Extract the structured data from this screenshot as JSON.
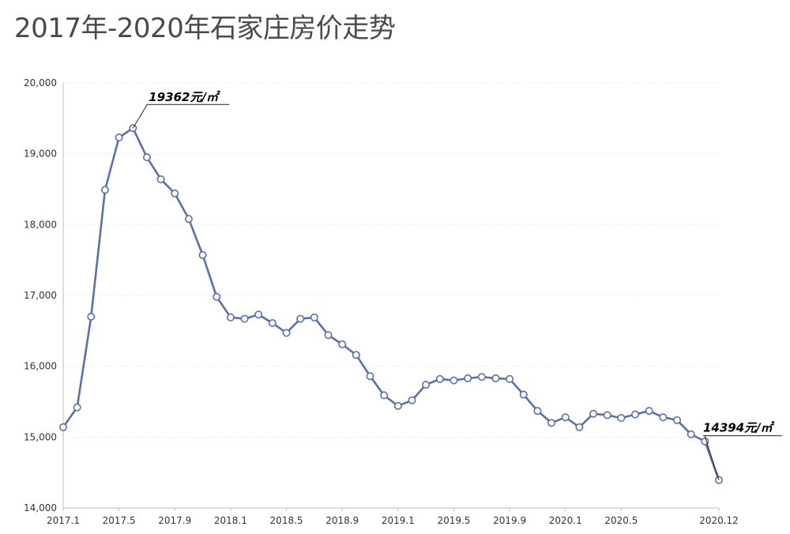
{
  "title": "2017年-2020年石家庄房价走势",
  "chart_data": {
    "type": "line",
    "title": "2017年-2020年石家庄房价走势",
    "xlabel": "",
    "ylabel": "",
    "ylim": [
      14000,
      20000
    ],
    "y_ticks": [
      14000,
      15000,
      16000,
      17000,
      18000,
      19000,
      20000
    ],
    "y_tick_labels": [
      "14,000",
      "15,000",
      "16,000",
      "17,000",
      "18,000",
      "19,000",
      "20,000"
    ],
    "x_tick_labels": [
      {
        "label": "2017.1",
        "index": 0
      },
      {
        "label": "2017.5",
        "index": 4
      },
      {
        "label": "2017.9",
        "index": 8
      },
      {
        "label": "2018.1",
        "index": 12
      },
      {
        "label": "2018.5",
        "index": 16
      },
      {
        "label": "2018.9",
        "index": 20
      },
      {
        "label": "2019.1",
        "index": 24
      },
      {
        "label": "2019.5",
        "index": 28
      },
      {
        "label": "2019.9",
        "index": 32
      },
      {
        "label": "2020.1",
        "index": 36
      },
      {
        "label": "2020.5",
        "index": 40
      },
      {
        "label": "2020.12",
        "index": 47
      }
    ],
    "grid": true,
    "line_color": "#5b6fa8",
    "series": [
      {
        "values": [
          15140,
          15420,
          16700,
          18490,
          19230,
          19362,
          18950,
          18640,
          18440,
          18080,
          17570,
          16980,
          16690,
          16670,
          16730,
          16610,
          16470,
          16670,
          16690,
          16440,
          16310,
          16160,
          15860,
          15590,
          15440,
          15520,
          15740,
          15820,
          15800,
          15830,
          15850,
          15830,
          15820,
          15600,
          15370,
          15200,
          15280,
          15140,
          15330,
          15310,
          15270,
          15320,
          15370,
          15280,
          15240,
          15040,
          14940,
          14394
        ]
      }
    ],
    "annotations": [
      {
        "index": 5,
        "text": "19362元/㎡"
      },
      {
        "index": 47,
        "text": "14394元/㎡"
      }
    ]
  }
}
